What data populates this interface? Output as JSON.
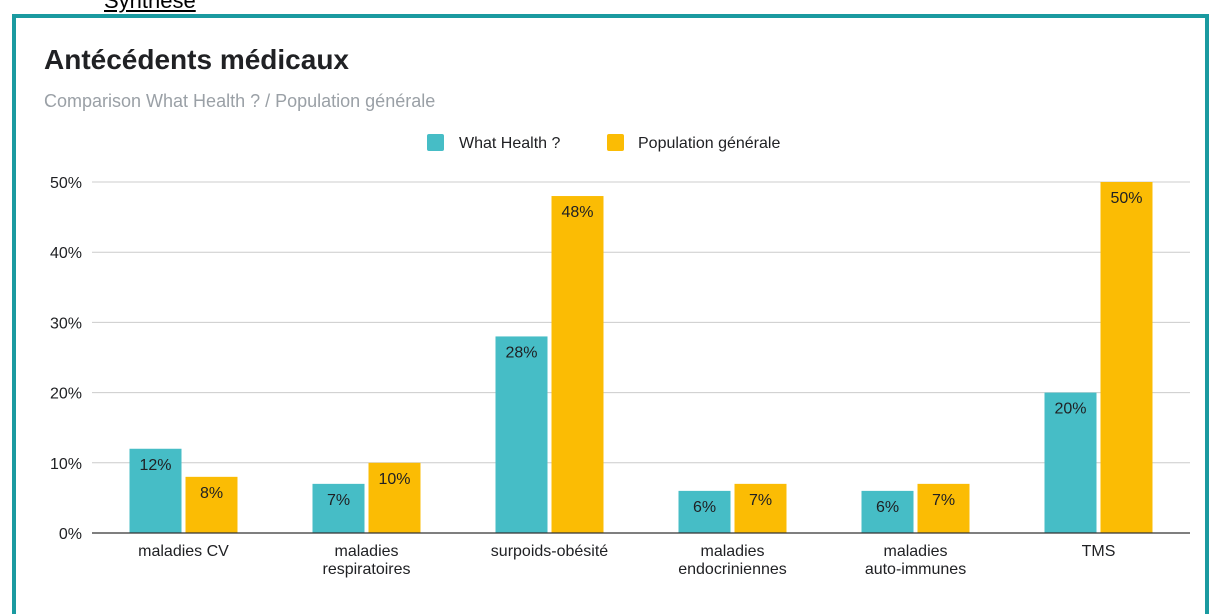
{
  "header": {
    "link_text": "Synthèse"
  },
  "colors": {
    "frame": "#1a9aa0",
    "series_1": "#46bdc6",
    "series_2": "#fbbc04"
  },
  "chart_data": {
    "type": "bar",
    "title": "Antécédents médicaux",
    "subtitle": "Comparison What Health ? / Population générale",
    "categories": [
      [
        "maladies CV"
      ],
      [
        "maladies",
        "respiratoires"
      ],
      [
        "surpoids-obésité"
      ],
      [
        "maladies",
        "endocriniennes"
      ],
      [
        "maladies",
        "auto-immunes"
      ],
      [
        "TMS"
      ]
    ],
    "series": [
      {
        "name": "What Health ?",
        "color": "#46bdc6",
        "values": [
          12,
          7,
          28,
          6,
          6,
          20
        ],
        "labels": [
          "12%",
          "7%",
          "28%",
          "6%",
          "6%",
          "20%"
        ]
      },
      {
        "name": "Population générale",
        "color": "#fbbc04",
        "values": [
          8,
          10,
          48,
          7,
          7,
          50
        ],
        "labels": [
          "8%",
          "10%",
          "48%",
          "7%",
          "7%",
          "50%"
        ]
      }
    ],
    "ylim": [
      0,
      50
    ],
    "yticks": [
      0,
      10,
      20,
      30,
      40,
      50
    ],
    "ytick_labels": [
      "0%",
      "10%",
      "20%",
      "30%",
      "40%",
      "50%"
    ],
    "xlabel": "",
    "ylabel": "",
    "grid": true,
    "legend": "top"
  }
}
